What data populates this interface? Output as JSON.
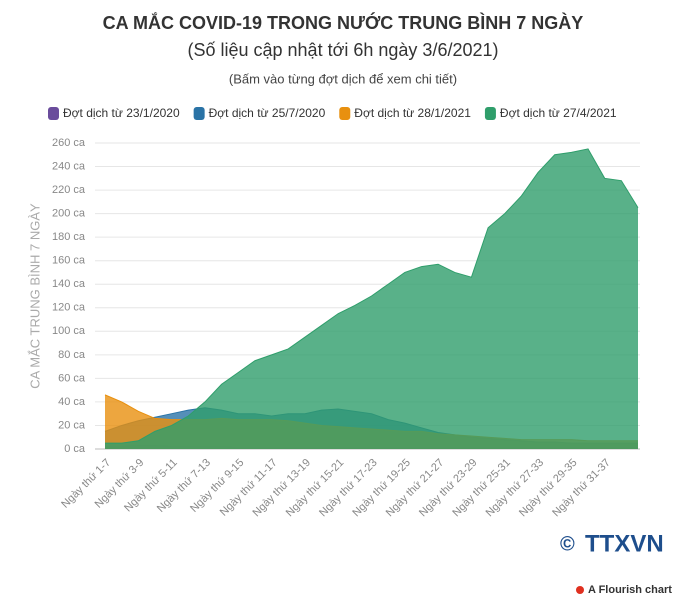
{
  "chart_data": {
    "type": "area",
    "title": "CA MẮC COVID-19 TRONG NƯỚC TRUNG BÌNH 7 NGÀY",
    "subtitle": "(Số liệu cập nhật tới 6h ngày 3/6/2021)",
    "note": "(Bấm vào từng đợt dịch để xem chi tiết)",
    "y_label": "CA MẮC TRUNG BÌNH 7 NGÀY",
    "logo": "TTXVN",
    "credit": "A Flourish chart",
    "categories": [
      "Ngày thứ 1-7",
      null,
      "Ngày thứ 3-9",
      null,
      "Ngày thứ 5-11",
      null,
      "Ngày thứ 7-13",
      null,
      "Ngày thứ 9-15",
      null,
      "Ngày thứ 11-17",
      null,
      "Ngày thứ 13-19",
      null,
      "Ngày thứ 15-21",
      null,
      "Ngày thứ 17-23",
      null,
      "Ngày thứ 19-25",
      null,
      "Ngày thứ 21-27",
      null,
      "Ngày thứ 23-29",
      null,
      "Ngày thứ 25-31",
      null,
      "Ngày thứ 27-33",
      null,
      "Ngày thứ 29-35",
      null,
      "Ngày thứ 31-37",
      null,
      null
    ],
    "series": [
      {
        "name": "Đợt dịch từ 23/1/2020",
        "color": "#6a4c9c",
        "values": [
          2,
          2,
          3,
          3,
          2,
          2,
          2,
          2,
          1,
          1,
          1,
          1,
          1,
          1,
          1,
          1,
          1,
          1,
          1,
          1,
          1,
          1,
          1,
          1,
          1,
          1,
          1,
          1,
          1,
          1,
          1,
          1,
          1
        ]
      },
      {
        "name": "Đợt dịch từ 25/7/2020",
        "color": "#2a73a6",
        "values": [
          15,
          20,
          24,
          27,
          30,
          33,
          35,
          33,
          30,
          30,
          28,
          30,
          30,
          33,
          34,
          32,
          30,
          25,
          22,
          18,
          14,
          12,
          10,
          9,
          8,
          7,
          6,
          6,
          5,
          5,
          5,
          5,
          5
        ]
      },
      {
        "name": "Đợt dịch từ 28/1/2021",
        "color": "#e8900f",
        "values": [
          46,
          40,
          32,
          26,
          25,
          25,
          25,
          26,
          25,
          25,
          25,
          24,
          22,
          20,
          19,
          18,
          17,
          16,
          15,
          15,
          13,
          12,
          11,
          10,
          9,
          8,
          8,
          8,
          8,
          7,
          7,
          7,
          7
        ]
      },
      {
        "name": "Đợt dịch từ 27/4/2021",
        "color": "#2f9e6b",
        "values": [
          5,
          5,
          7,
          15,
          20,
          28,
          40,
          55,
          65,
          75,
          80,
          85,
          95,
          105,
          115,
          122,
          130,
          140,
          150,
          155,
          157,
          150,
          146,
          188,
          200,
          215,
          235,
          250,
          252,
          255,
          230,
          228,
          205
        ]
      }
    ],
    "ylim": [
      0,
      260
    ],
    "yticks": [
      {
        "value": 0,
        "label": "0 ca"
      },
      {
        "value": 20,
        "label": "20 ca"
      },
      {
        "value": 40,
        "label": "40 ca"
      },
      {
        "value": 60,
        "label": "60 ca"
      },
      {
        "value": 80,
        "label": "80 ca"
      },
      {
        "value": 100,
        "label": "100 ca"
      },
      {
        "value": 120,
        "label": "120 ca"
      },
      {
        "value": 140,
        "label": "140 ca"
      },
      {
        "value": 160,
        "label": "160 ca"
      },
      {
        "value": 180,
        "label": "180 ca"
      },
      {
        "value": 200,
        "label": "200 ca"
      },
      {
        "value": 220,
        "label": "220 ca"
      },
      {
        "value": 240,
        "label": "240 ca"
      },
      {
        "value": 260,
        "label": "260 ca"
      }
    ],
    "grid": true
  }
}
